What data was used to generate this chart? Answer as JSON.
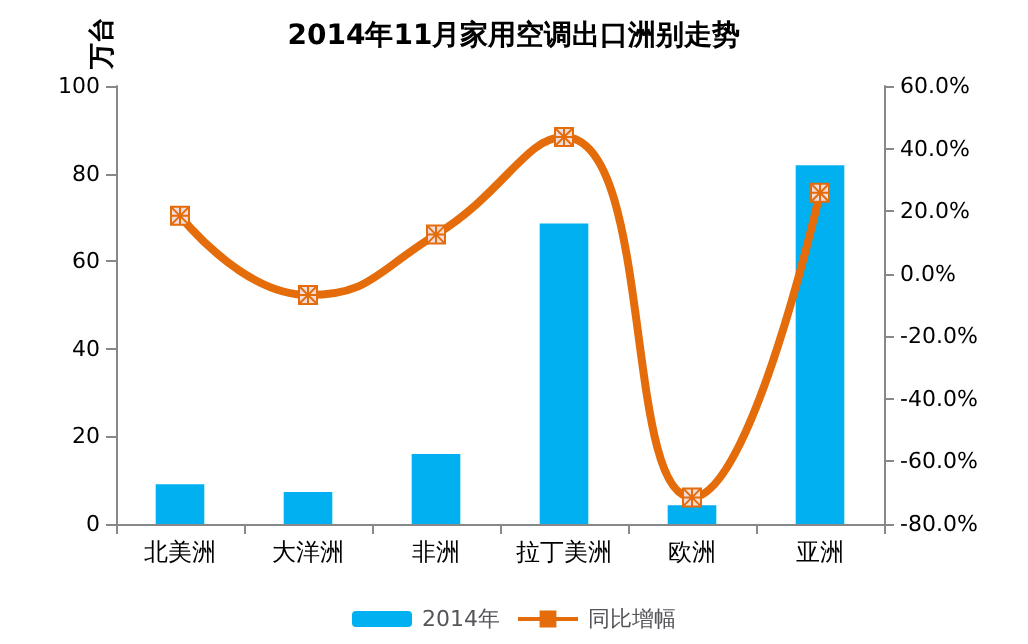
{
  "chart_data": {
    "type": "bar",
    "title": "2014年11月家用空调出口洲别走势",
    "ylabel": "万台",
    "categories": [
      "北美洲",
      "大洋洲",
      "非洲",
      "拉丁美洲",
      "欧洲",
      "亚洲"
    ],
    "series": [
      {
        "name": "2014年",
        "color": "#00b0f0",
        "values": [
          9.1,
          7.3,
          16,
          68.6,
          4.3,
          81.9
        ]
      },
      {
        "name": "同比增幅",
        "type": "line",
        "axis": "y2",
        "color": "#e46c0a",
        "marker": "cross",
        "values": [
          18.5,
          -6.8,
          12.5,
          43.7,
          -71.5,
          25.9
        ]
      }
    ],
    "ylim": [
      0,
      100
    ],
    "yticks": [
      0,
      20,
      40,
      60,
      80,
      100
    ],
    "y2lim": [
      -80,
      60
    ],
    "y2ticks": [
      {
        "value": -80,
        "label": "-80.0%"
      },
      {
        "value": -60,
        "label": "-60.0%"
      },
      {
        "value": -40,
        "label": "-40.0%"
      },
      {
        "value": -20,
        "label": "-20.0%"
      },
      {
        "value": 0,
        "label": "0.0%"
      },
      {
        "value": 20,
        "label": "20.0%"
      },
      {
        "value": 40,
        "label": "40.0%"
      },
      {
        "value": 60,
        "label": "60.0%"
      }
    ],
    "grid": false,
    "legend": "bottom"
  }
}
